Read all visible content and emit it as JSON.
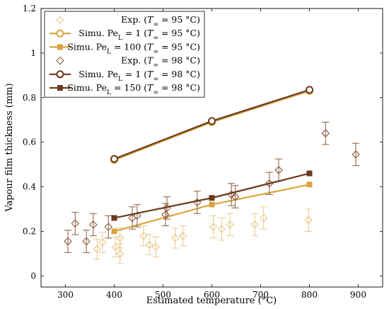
{
  "chart_data": {
    "type": "scatter",
    "xlabel": "Estimated temperature (°C)",
    "ylabel": "Vapour film thickness (mm)",
    "xlim": [
      250,
      950
    ],
    "ylim": [
      -0.05,
      1.2
    ],
    "xticks": [
      300,
      400,
      500,
      600,
      700,
      800,
      900
    ],
    "yticks": [
      0,
      0.2,
      0.4,
      0.6,
      0.8,
      1,
      1.2
    ],
    "yticklabels": [
      "0",
      "0.2",
      "0.4",
      "0.6",
      "0.8",
      "1",
      "1.2"
    ],
    "grid": false,
    "legend_position": "top-left",
    "series": [
      {
        "name": "Exp. (T∞ = 95 °C)",
        "kind": "errorbar",
        "color": "#e8c98a",
        "points": [
          {
            "x": 365,
            "y": 0.12,
            "err": 0.045
          },
          {
            "x": 376,
            "y": 0.15,
            "err": 0.045
          },
          {
            "x": 403,
            "y": 0.13,
            "err": 0.045
          },
          {
            "x": 412,
            "y": 0.17,
            "err": 0.045
          },
          {
            "x": 412,
            "y": 0.1,
            "err": 0.045
          },
          {
            "x": 460,
            "y": 0.18,
            "err": 0.045
          },
          {
            "x": 472,
            "y": 0.14,
            "err": 0.045
          },
          {
            "x": 485,
            "y": 0.13,
            "err": 0.045
          },
          {
            "x": 525,
            "y": 0.17,
            "err": 0.045
          },
          {
            "x": 541,
            "y": 0.18,
            "err": 0.045
          },
          {
            "x": 603,
            "y": 0.22,
            "err": 0.05
          },
          {
            "x": 620,
            "y": 0.21,
            "err": 0.05
          },
          {
            "x": 637,
            "y": 0.23,
            "err": 0.05
          },
          {
            "x": 688,
            "y": 0.23,
            "err": 0.05
          },
          {
            "x": 706,
            "y": 0.26,
            "err": 0.05
          },
          {
            "x": 798,
            "y": 0.25,
            "err": 0.05
          }
        ]
      },
      {
        "name": "Simu. PeL = 1 (T∞ = 95 °C)",
        "kind": "line",
        "marker": "circle",
        "color": "#d9a441",
        "x": [
          400,
          600,
          800
        ],
        "y": [
          0.52,
          0.69,
          0.83
        ]
      },
      {
        "name": "Simu. PeL = 100 (T∞ = 95 °C)",
        "kind": "line",
        "marker": "square",
        "color": "#d9a441",
        "x": [
          400,
          600,
          800
        ],
        "y": [
          0.2,
          0.32,
          0.41
        ]
      },
      {
        "name": "Exp. (T∞ = 98 °C)",
        "kind": "errorbar",
        "color": "#8b5a3c",
        "points": [
          {
            "x": 305,
            "y": 0.155,
            "err": 0.05
          },
          {
            "x": 320,
            "y": 0.235,
            "err": 0.05
          },
          {
            "x": 343,
            "y": 0.155,
            "err": 0.05
          },
          {
            "x": 357,
            "y": 0.23,
            "err": 0.05
          },
          {
            "x": 388,
            "y": 0.22,
            "err": 0.05
          },
          {
            "x": 437,
            "y": 0.26,
            "err": 0.05
          },
          {
            "x": 447,
            "y": 0.27,
            "err": 0.05
          },
          {
            "x": 505,
            "y": 0.275,
            "err": 0.05
          },
          {
            "x": 508,
            "y": 0.305,
            "err": 0.05
          },
          {
            "x": 570,
            "y": 0.33,
            "err": 0.05
          },
          {
            "x": 640,
            "y": 0.365,
            "err": 0.05
          },
          {
            "x": 648,
            "y": 0.355,
            "err": 0.05
          },
          {
            "x": 718,
            "y": 0.415,
            "err": 0.05
          },
          {
            "x": 737,
            "y": 0.475,
            "err": 0.05
          },
          {
            "x": 833,
            "y": 0.64,
            "err": 0.05
          },
          {
            "x": 895,
            "y": 0.545,
            "err": 0.05
          }
        ]
      },
      {
        "name": "Simu. PeL = 1 (T∞ = 98 °C)",
        "kind": "line",
        "marker": "circle",
        "color": "#6b3a1e",
        "x": [
          400,
          600,
          800
        ],
        "y": [
          0.525,
          0.695,
          0.835
        ]
      },
      {
        "name": "Simu. PeL = 150 (T∞ = 98 °C)",
        "kind": "line",
        "marker": "square",
        "color": "#6b3a1e",
        "x": [
          400,
          600,
          800
        ],
        "y": [
          0.26,
          0.35,
          0.46
        ]
      }
    ]
  },
  "legend": [
    {
      "marker": "diamond",
      "prefix": "Exp. (",
      "sym": "T",
      "sub": "∞",
      "suffix": " = 95 °C)"
    },
    {
      "marker": "circle-line",
      "prefix": "Simu. Pe",
      "subL": "L",
      "mid": " = 1 (",
      "sym": "T",
      "sub": "∞",
      "suffix": " = 95 °C)"
    },
    {
      "marker": "square-line",
      "prefix": "Simu. Pe",
      "subL": "L",
      "mid": " = 100 (",
      "sym": "T",
      "sub": "∞",
      "suffix": " = 95 °C)"
    },
    {
      "marker": "diamond",
      "prefix": "Exp. (",
      "sym": "T",
      "sub": "∞",
      "suffix": " = 98 °C)"
    },
    {
      "marker": "circle-line",
      "prefix": "Simu. Pe",
      "subL": "L",
      "mid": " = 1 (",
      "sym": "T",
      "sub": "∞",
      "suffix": " = 98 °C)"
    },
    {
      "marker": "square-line",
      "prefix": "Simu. Pe",
      "subL": "L",
      "mid": " = 150 (",
      "sym": "T",
      "sub": "∞",
      "suffix": " = 98 °C)"
    }
  ]
}
